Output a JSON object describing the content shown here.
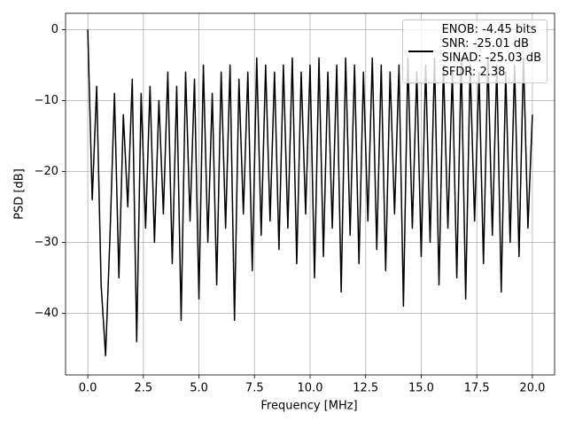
{
  "chart_data": {
    "type": "line",
    "xlabel": "Frequency [MHz]",
    "ylabel": "PSD [dB]",
    "x": [
      0,
      0.2,
      0.4,
      0.6,
      0.8,
      1,
      1.2,
      1.4,
      1.6,
      1.8,
      2,
      2.2,
      2.4,
      2.6,
      2.8,
      3,
      3.2,
      3.4,
      3.6,
      3.8,
      4,
      4.2,
      4.4,
      4.6,
      4.8,
      5,
      5.2,
      5.4,
      5.6,
      5.8,
      6,
      6.2,
      6.4,
      6.6,
      6.8,
      7,
      7.2,
      7.4,
      7.6,
      7.8,
      8,
      8.2,
      8.4,
      8.6,
      8.8,
      9,
      9.2,
      9.4,
      9.6,
      9.8,
      10,
      10.2,
      10.4,
      10.6,
      10.8,
      11,
      11.2,
      11.4,
      11.6,
      11.8,
      12,
      12.2,
      12.4,
      12.6,
      12.8,
      13,
      13.2,
      13.4,
      13.6,
      13.8,
      14,
      14.2,
      14.4,
      14.6,
      14.8,
      15,
      15.2,
      15.4,
      15.6,
      15.8,
      16,
      16.2,
      16.4,
      16.6,
      16.8,
      17,
      17.2,
      17.4,
      17.6,
      17.8,
      18,
      18.2,
      18.4,
      18.6,
      18.8,
      19,
      19.2,
      19.4,
      19.6,
      19.8,
      20
    ],
    "series": [
      {
        "name": "ENOB: -4.45 bits\nSNR: -25.01 dB\nSINAD: -25.03 dB\nSFDR: 2.38",
        "color": "#000000",
        "values": [
          0,
          -24,
          -8,
          -36,
          -46,
          -29,
          -9,
          -35,
          -12,
          -25,
          -7,
          -44,
          -9,
          -28,
          -8,
          -30,
          -10,
          -26,
          -6,
          -33,
          -8,
          -41,
          -6,
          -27,
          -7,
          -38,
          -5,
          -30,
          -9,
          -36,
          -6,
          -28,
          -5,
          -41,
          -7,
          -26,
          -6,
          -34,
          -4,
          -29,
          -5,
          -27,
          -6,
          -31,
          -5,
          -28,
          -4,
          -33,
          -6,
          -26,
          -5,
          -35,
          -4,
          -32,
          -6,
          -28,
          -5,
          -37,
          -4,
          -29,
          -5,
          -33,
          -6,
          -27,
          -4,
          -31,
          -5,
          -34,
          -6,
          -26,
          -5,
          -39,
          -4,
          -28,
          -6,
          -32,
          -5,
          -30,
          -4,
          -36,
          -5,
          -28,
          -6,
          -35,
          -4,
          -38,
          -5,
          -27,
          -6,
          -33,
          -4,
          -29,
          -5,
          -37,
          -6,
          -30,
          -5,
          -32,
          -4,
          -28,
          -12
        ]
      }
    ],
    "xlim": [
      -1,
      21
    ],
    "ylim": [
      -48.7,
      2.3
    ],
    "xticks": [
      {
        "value": 0,
        "label": "0.0"
      },
      {
        "value": 2.5,
        "label": "2.5"
      },
      {
        "value": 5,
        "label": "5.0"
      },
      {
        "value": 7.5,
        "label": "7.5"
      },
      {
        "value": 10,
        "label": "10.0"
      },
      {
        "value": 12.5,
        "label": "12.5"
      },
      {
        "value": 15,
        "label": "15.0"
      },
      {
        "value": 17.5,
        "label": "17.5"
      },
      {
        "value": 20,
        "label": "20.0"
      }
    ],
    "yticks": [
      0,
      {
        "value": -10,
        "label": "−10"
      },
      {
        "value": -20,
        "label": "−20"
      },
      {
        "value": -30,
        "label": "−30"
      },
      {
        "value": -40,
        "label": "−40"
      }
    ],
    "grid": true,
    "legend": "upper right"
  }
}
